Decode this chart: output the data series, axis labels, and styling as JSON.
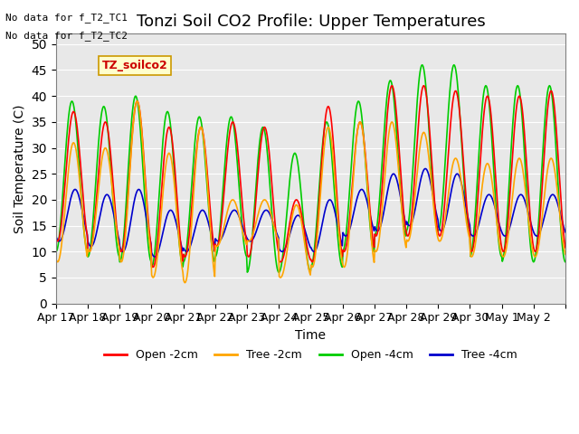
{
  "title": "Tonzi Soil CO2 Profile: Upper Temperatures",
  "ylabel": "Soil Temperature (C)",
  "xlabel": "Time",
  "annotations": [
    "No data for f_T2_TC1",
    "No data for f_T2_TC2"
  ],
  "legend_label": "TZ_soilco2",
  "series_labels": [
    "Open -2cm",
    "Tree -2cm",
    "Open -4cm",
    "Tree -4cm"
  ],
  "series_colors": [
    "#ff0000",
    "#ffa500",
    "#00cc00",
    "#0000cc"
  ],
  "ylim": [
    0,
    52
  ],
  "yticks": [
    0,
    5,
    10,
    15,
    20,
    25,
    30,
    35,
    40,
    45,
    50
  ],
  "x_tick_labels": [
    "Apr 17",
    "Apr 18",
    "Apr 19",
    "Apr 20",
    "Apr 21",
    "Apr 22",
    "Apr 23",
    "Apr 24",
    "Apr 25",
    "Apr 26",
    "Apr 27",
    "Apr 28",
    "Apr 29",
    "Apr 30",
    "May 1",
    "May 2",
    ""
  ],
  "bg_color": "#e8e8e8",
  "title_fontsize": 13,
  "axis_fontsize": 10,
  "legend_fontsize": 9,
  "linewidth": 1.2,
  "num_days": 16,
  "points_per_day": 48,
  "open_2cm_day_temps": [
    37,
    35,
    39,
    34,
    34,
    35,
    34,
    20,
    38,
    35,
    42,
    42,
    41,
    40,
    40,
    41
  ],
  "open_2cm_night_temps": [
    12,
    10,
    10,
    7,
    9,
    11,
    9,
    8,
    8,
    10,
    13,
    13,
    13,
    10,
    10,
    10
  ],
  "tree_2cm_day_temps": [
    31,
    30,
    39,
    29,
    34,
    20,
    20,
    19,
    34,
    35,
    35,
    33,
    28,
    27,
    28,
    28
  ],
  "tree_2cm_night_temps": [
    8,
    10,
    8,
    5,
    4,
    11,
    12,
    5,
    7,
    7,
    10,
    12,
    12,
    9,
    9,
    9
  ],
  "open_4cm_day_temps": [
    39,
    38,
    40,
    37,
    36,
    36,
    34,
    29,
    35,
    39,
    43,
    46,
    46,
    42,
    42,
    42
  ],
  "open_4cm_night_temps": [
    10,
    9,
    8,
    7,
    8,
    9,
    6,
    6,
    7,
    10,
    13,
    14,
    14,
    9,
    8,
    8
  ],
  "tree_4cm_day_temps": [
    22,
    21,
    22,
    18,
    18,
    18,
    18,
    17,
    20,
    22,
    25,
    26,
    25,
    21,
    21,
    21
  ],
  "tree_4cm_night_temps": [
    12,
    11,
    10,
    9,
    10,
    12,
    12,
    10,
    10,
    13,
    14,
    15,
    14,
    13,
    13,
    13
  ]
}
